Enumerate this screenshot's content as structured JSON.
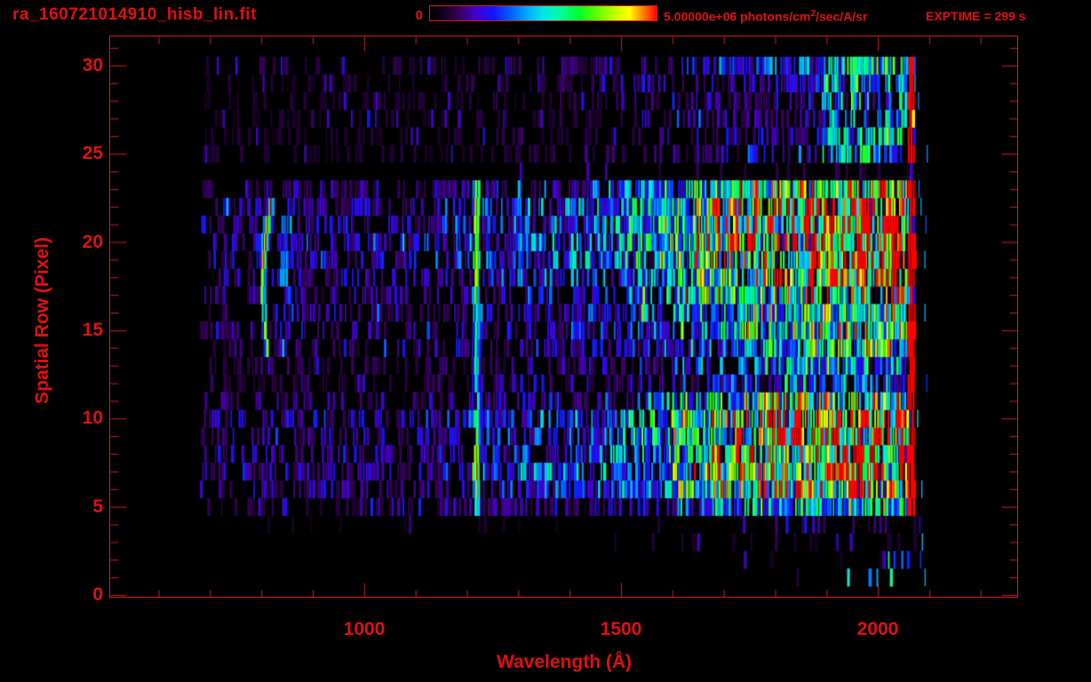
{
  "header": {
    "filename": "ra_160721014910_hisb_lin.fit",
    "exptime": "EXPTIME = 299 s",
    "colorbar": {
      "min_label": "0",
      "max_label_prefix": "5.00000e+06 photons/cm",
      "max_label_sup": "2",
      "max_label_suffix": "/sec/A/sr"
    }
  },
  "chart_data": {
    "type": "heatmap",
    "title": "ra_160721014910_hisb_lin.fit",
    "xlabel": "Wavelength (Å)",
    "ylabel": "Spatial Row (Pixel)",
    "x_ticks": [
      1000,
      1500,
      2000
    ],
    "x_minor_tick_step": 100,
    "x_minor_tick_start": 600,
    "x_minor_tick_end": 2200,
    "x_axis_range": [
      504,
      2273
    ],
    "y_ticks": [
      0,
      5,
      10,
      15,
      20,
      25,
      30
    ],
    "y_minor_tick_step": 1,
    "y_axis_range": [
      -0.15,
      31.7
    ],
    "rows": 31,
    "data_wavelength_range": [
      680,
      2095
    ],
    "colorbar_range_label": [
      "0",
      "5.00000e+06 photons/cm2/sec/A/sr"
    ],
    "exposure_time_s": 299,
    "accent_color": "#e01010",
    "frame_color": "#cc2020",
    "background": "#000000",
    "colormap": [
      [
        0.0,
        "#000000"
      ],
      [
        0.06,
        "#14001e"
      ],
      [
        0.14,
        "#3a0066"
      ],
      [
        0.2,
        "#4400cc"
      ],
      [
        0.28,
        "#1414ff"
      ],
      [
        0.36,
        "#0064ff"
      ],
      [
        0.44,
        "#00b4ff"
      ],
      [
        0.5,
        "#00e6e6"
      ],
      [
        0.58,
        "#00ff96"
      ],
      [
        0.66,
        "#00ff28"
      ],
      [
        0.74,
        "#64ff00"
      ],
      [
        0.82,
        "#c8ff00"
      ],
      [
        0.88,
        "#ffff00"
      ],
      [
        0.93,
        "#ff9600"
      ],
      [
        1.0,
        "#ff0000"
      ]
    ],
    "row_intensity": [
      0.012,
      0.02,
      0.025,
      0.05,
      0.11,
      0.45,
      0.78,
      0.95,
      0.88,
      0.82,
      0.85,
      0.62,
      0.33,
      0.38,
      0.5,
      0.55,
      0.55,
      0.65,
      0.82,
      0.95,
      1.0,
      0.92,
      0.85,
      0.72,
      0.07,
      0.2,
      0.18,
      0.15,
      0.17,
      0.19,
      0.28
    ],
    "wavelength_profile": [
      [
        680,
        0.15
      ],
      [
        900,
        0.16
      ],
      [
        1100,
        0.17
      ],
      [
        1190,
        0.2
      ],
      [
        1240,
        0.24
      ],
      [
        1400,
        0.3
      ],
      [
        1480,
        0.32
      ],
      [
        1560,
        0.45
      ],
      [
        1650,
        0.62
      ],
      [
        1750,
        0.78
      ],
      [
        1850,
        0.9
      ],
      [
        1950,
        1.0
      ],
      [
        2030,
        0.97
      ],
      [
        2057,
        0.9
      ]
    ],
    "features": [
      {
        "name": "lyman-alpha-emission-line",
        "wavelength": 1216,
        "sigma": 6,
        "rows": [
          4.5,
          23.5
        ],
        "strength": 0.55,
        "value_cap": 0.8
      },
      {
        "name": "airglow-arc",
        "wavelength_center": 800,
        "curvature": 0.74,
        "row_center": 17.5,
        "sigma": 4.5,
        "rows": [
          13.2,
          22.3
        ],
        "strength": 0.5
      },
      {
        "name": "arc-companion-band",
        "wavelength": 845,
        "sigma": 18,
        "rows": [
          14,
          21.5
        ],
        "strength": 0.2
      },
      {
        "name": "detector-edge-glow",
        "wavelength_range": [
          2057,
          2071
        ],
        "rows": [
          4.7,
          23.3
        ],
        "alt_rows": [
          25,
          30.5
        ],
        "strength": 0.92
      },
      {
        "name": "overscan-noise",
        "wavelength_range": [
          2071,
          2095
        ],
        "probability": 0.09,
        "strength": 0.3
      },
      {
        "name": "upper-right-cluster",
        "wavelength_range": [
          1890,
          2057
        ],
        "rows": [
          24.6,
          30.5
        ],
        "strength": 0.42
      },
      {
        "name": "lower-right-specks",
        "wavelength_range": [
          1940,
          2075
        ],
        "rows": [
          0.6,
          2.5
        ],
        "probability": 0.1,
        "strength": 0.35
      }
    ]
  }
}
